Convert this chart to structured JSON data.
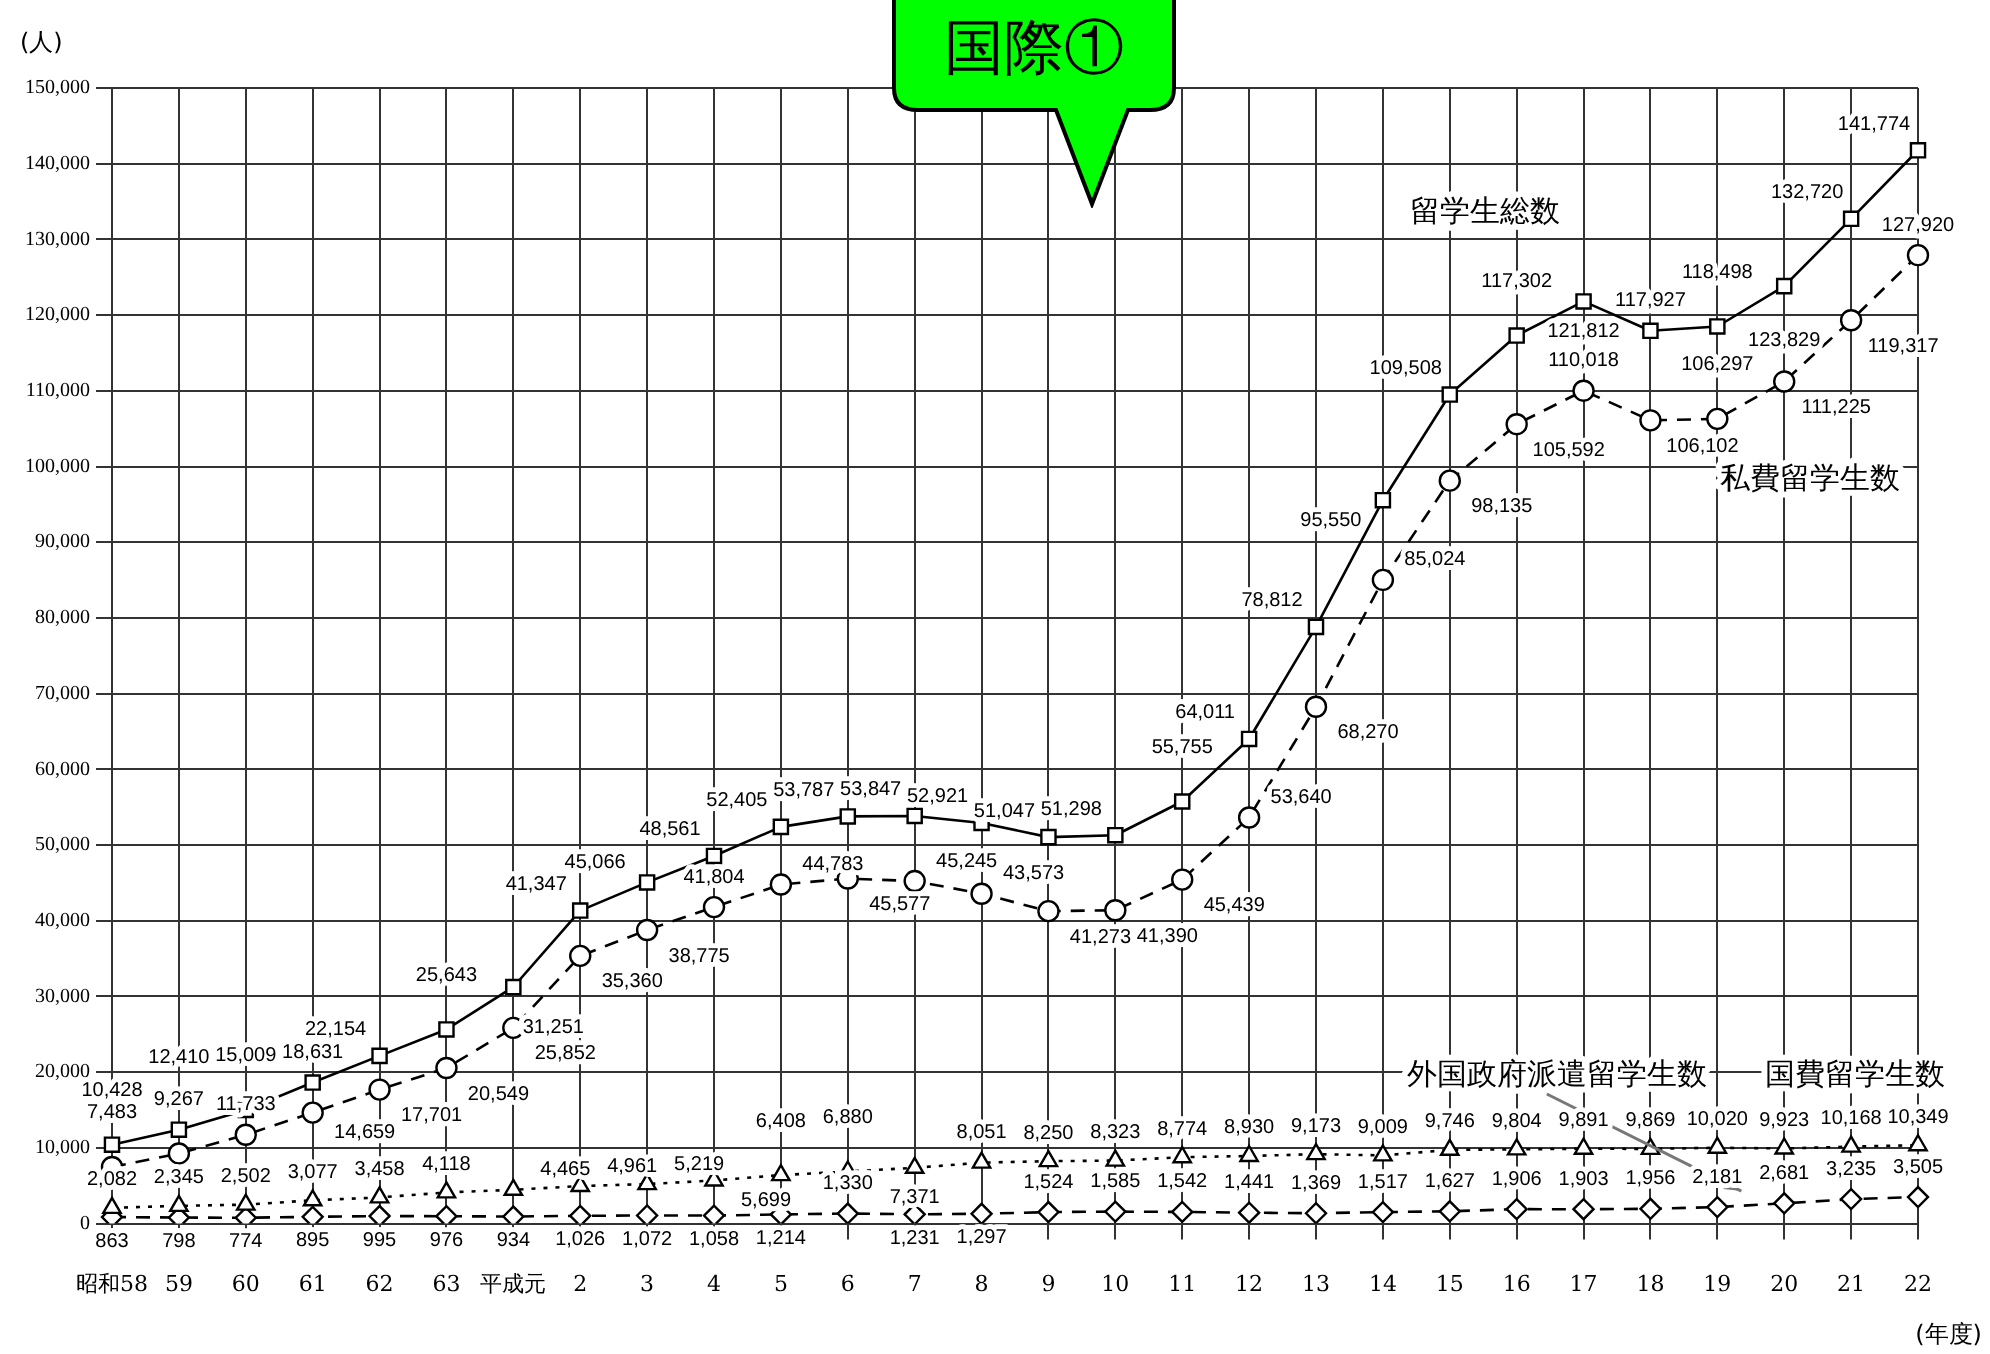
{
  "chart_data": {
    "type": "line",
    "ylabel": "(人)",
    "xlabel": "(年度)",
    "categories": [
      "昭和58",
      "59",
      "60",
      "61",
      "62",
      "63",
      "平成元",
      "2",
      "3",
      "4",
      "5",
      "6",
      "7",
      "8",
      "9",
      "10",
      "11",
      "12",
      "13",
      "14",
      "15",
      "16",
      "17",
      "18",
      "19",
      "20",
      "21",
      "22"
    ],
    "series": [
      {
        "name": "留学生総数",
        "color": "#000000",
        "marker": "square",
        "line_style": "solid",
        "values": [
          10428,
          12410,
          15009,
          18631,
          22154,
          25643,
          31251,
          41347,
          45066,
          48561,
          52405,
          53787,
          53847,
          52921,
          51047,
          51298,
          55755,
          64011,
          78812,
          95550,
          109508,
          117302,
          121812,
          117927,
          118498,
          123829,
          132720,
          141774
        ],
        "value_labels": [
          "10,428",
          "12,410",
          "15,009",
          "18,631",
          "22,154",
          "25,643",
          "31,251",
          "41,347",
          "45,066",
          "48,561",
          "52,405",
          "53,787",
          "53,847",
          "52,921",
          "51,047",
          "51,298",
          "55,755",
          "64,011",
          "78,812",
          "95,550",
          "109,508",
          "117,302",
          "121,812",
          "117,927",
          "118,498",
          "123,829",
          "132,720",
          "141,774"
        ]
      },
      {
        "name": "私費留学生数",
        "color": "#000000",
        "marker": "circle",
        "line_style": "dashed",
        "values": [
          7483,
          9267,
          11733,
          14659,
          17701,
          20549,
          25852,
          35360,
          38775,
          41804,
          44783,
          45577,
          45245,
          43573,
          41273,
          41390,
          45439,
          53640,
          68270,
          85024,
          98135,
          105592,
          110018,
          106102,
          106297,
          111225,
          119317,
          127920
        ],
        "value_labels": [
          "7,483",
          "9,267",
          "11,733",
          "14,659",
          "17,701",
          "20,549",
          "25,852",
          "35,360",
          "38,775",
          "41,804",
          "44,783",
          "45,577",
          "45,245",
          "43,573",
          "41,273",
          "41,390",
          "45,439",
          "53,640",
          "68,270",
          "85,024",
          "98,135",
          "105,592",
          "110,018",
          "106,102",
          "106,297",
          "111,225",
          "119,317",
          "127,920"
        ]
      },
      {
        "name": "国費留学生数",
        "color": "#000000",
        "marker": "triangle",
        "line_style": "dotted",
        "values": [
          2082,
          2345,
          2502,
          3077,
          3458,
          4118,
          4465,
          4961,
          5219,
          5699,
          6408,
          6880,
          7371,
          8051,
          8250,
          8323,
          8774,
          8930,
          9173,
          9009,
          9746,
          9804,
          9891,
          9869,
          10020,
          9923,
          10168,
          10349
        ],
        "value_labels": [
          "2,082",
          "2,345",
          "2,502",
          "3,077",
          "3,458",
          "4,118",
          "4,465",
          "4,961",
          "5,219",
          "5,699",
          "6,408",
          "6,880",
          "7,371",
          "8,051",
          "8,250",
          "8,323",
          "8,774",
          "8,930",
          "9,173",
          "9,009",
          "9,746",
          "9,804",
          "9,891",
          "9,869",
          "10,020",
          "9,923",
          "10,168",
          "10,349"
        ]
      },
      {
        "name": "外国政府派遣留学生数",
        "color": "#000000",
        "marker": "diamond",
        "line_style": "dashed",
        "values": [
          863,
          798,
          774,
          895,
          995,
          976,
          934,
          1026,
          1072,
          1058,
          1214,
          1330,
          1231,
          1297,
          1524,
          1585,
          1542,
          1441,
          1369,
          1517,
          1627,
          1906,
          1903,
          1956,
          2181,
          2681,
          3235,
          3505
        ],
        "value_labels": [
          "863",
          "798",
          "774",
          "895",
          "995",
          "976",
          "934",
          "1,026",
          "1,072",
          "1,058",
          "1,214",
          "1,330",
          "1,231",
          "1,297",
          "1,524",
          "1,585",
          "1,542",
          "1,441",
          "1,369",
          "1,517",
          "1,627",
          "1,906",
          "1,903",
          "1,956",
          "2,181",
          "2,681",
          "3,235",
          "3,505"
        ]
      }
    ],
    "ylim": [
      0,
      150000
    ],
    "yticks": [
      0,
      {
        "value": 10000,
        "label": "10,000"
      },
      {
        "value": 20000,
        "label": "20,000"
      },
      {
        "value": 30000,
        "label": "30,000"
      },
      {
        "value": 40000,
        "label": "40,000"
      },
      {
        "value": 50000,
        "label": "50,000"
      },
      {
        "value": 60000,
        "label": "60,000"
      },
      {
        "value": 70000,
        "label": "70,000"
      },
      {
        "value": 80000,
        "label": "80,000"
      },
      {
        "value": 90000,
        "label": "90,000"
      },
      {
        "value": 100000,
        "label": "100,000"
      },
      {
        "value": 110000,
        "label": "110,000"
      },
      {
        "value": 120000,
        "label": "120,000"
      },
      {
        "value": 130000,
        "label": "130,000"
      },
      {
        "value": 140000,
        "label": "140,000"
      },
      {
        "value": 150000,
        "label": "150,000"
      }
    ],
    "grid": true,
    "legend": false,
    "annotations": [
      "国際①"
    ]
  }
}
